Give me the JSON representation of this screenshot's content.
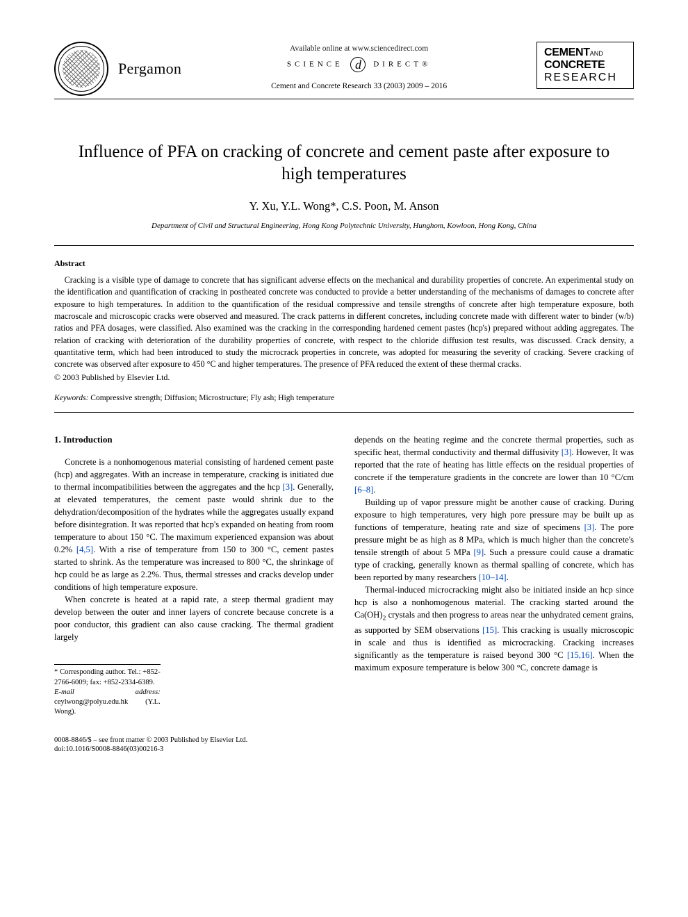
{
  "header": {
    "publisher": "Pergamon",
    "available_line": "Available online at www.sciencedirect.com",
    "scidirect_left": "SCIENCE",
    "scidirect_glyph": "d",
    "scidirect_right": "DIRECT®",
    "journal_citation": "Cement and Concrete Research 33 (2003) 2009 – 2016",
    "box": {
      "line1a": "CEMENT",
      "line1b": "AND",
      "line2": "CONCRETE",
      "line3": "RESEARCH"
    }
  },
  "article": {
    "title": "Influence of PFA on cracking of concrete and cement paste after exposure to high temperatures",
    "authors": "Y. Xu, Y.L. Wong*, C.S. Poon, M. Anson",
    "affiliation": "Department of Civil and Structural Engineering, Hong Kong Polytechnic University, Hunghom, Kowloon, Hong Kong, China"
  },
  "abstract": {
    "heading": "Abstract",
    "body": "Cracking is a visible type of damage to concrete that has significant adverse effects on the mechanical and durability properties of concrete. An experimental study on the identification and quantification of cracking in postheated concrete was conducted to provide a better understanding of the mechanisms of damages to concrete after exposure to high temperatures. In addition to the quantification of the residual compressive and tensile strengths of concrete after high temperature exposure, both macroscale and microscopic cracks were observed and measured. The crack patterns in different concretes, including concrete made with different water to binder (w/b) ratios and PFA dosages, were classified. Also examined was the cracking in the corresponding hardened cement pastes (hcp's) prepared without adding aggregates. The relation of cracking with deterioration of the durability properties of concrete, with respect to the chloride diffusion test results, was discussed. Crack density, a quantitative term, which had been introduced to study the microcrack properties in concrete, was adopted for measuring the severity of cracking. Severe cracking of concrete was observed after exposure to 450 °C and higher temperatures. The presence of PFA reduced the extent of these thermal cracks.",
    "copyright": "© 2003 Published by Elsevier Ltd."
  },
  "keywords": {
    "label": "Keywords:",
    "text": " Compressive strength; Diffusion; Microstructure; Fly ash; High temperature"
  },
  "intro": {
    "heading": "1. Introduction",
    "left_paras": [
      "Concrete is a nonhomogenous material consisting of hardened cement paste (hcp) and aggregates. With an increase in temperature, cracking is initiated due to thermal incompatibilities between the aggregates and the hcp [3]. Generally, at elevated temperatures, the cement paste would shrink due to the dehydration/decomposition of the hydrates while the aggregates usually expand before disintegration. It was reported that hcp's expanded on heating from room temperature to about 150 °C. The maximum experienced expansion was about 0.2% [4,5]. With a rise of temperature from 150 to 300 °C, cement pastes started to shrink. As the temperature was increased to 800 °C, the shrinkage of hcp could be as large as 2.2%. Thus, thermal stresses and cracks develop under conditions of high temperature exposure.",
      "When concrete is heated at a rapid rate, a steep thermal gradient may develop between the outer and inner layers of concrete because concrete is a poor conductor, this gradient can also cause cracking. The thermal gradient largely"
    ],
    "right_paras": [
      "depends on the heating regime and the concrete thermal properties, such as specific heat, thermal conductivity and thermal diffusivity [3]. However, It was reported that the rate of heating has little effects on the residual properties of concrete if the temperature gradients in the concrete are lower than 10 °C/cm [6–8].",
      "Building up of vapor pressure might be another cause of cracking. During exposure to high temperatures, very high pore pressure may be built up as functions of temperature, heating rate and size of specimens [3]. The pore pressure might be as high as 8 MPa, which is much higher than the concrete's tensile strength of about 5 MPa [9]. Such a pressure could cause a dramatic type of cracking, generally known as thermal spalling of concrete, which has been reported by many researchers [10–14].",
      "Thermal-induced microcracking might also be initiated inside an hcp since hcp is also a nonhomogenous material. The cracking started around the Ca(OH)₂ crystals and then progress to areas near the unhydrated cement grains, as supported by SEM observations [15]. This cracking is usually microscopic in scale and thus is identified as microcracking. Cracking increases significantly as the temperature is raised beyond 300 °C [15,16]. When the maximum exposure temperature is below 300 °C, concrete damage is"
    ]
  },
  "footnote": {
    "line1": "* Corresponding author. Tel.: +852-2766-6009; fax: +852-2334-6389.",
    "mail_label": "E-mail address:",
    "mail_value": " ceylwong@polyu.edu.hk (Y.L. Wong)."
  },
  "footer": {
    "line1": "0008-8846/$ – see front matter © 2003 Published by Elsevier Ltd.",
    "line2": "doi:10.1016/S0008-8846(03)00216-3"
  },
  "ref_links": {
    "r3": "[3]",
    "r45": "[4,5]",
    "r6_8": "[6–8]",
    "r9": "[9]",
    "r10_14": "[10–14]",
    "r15": "[15]",
    "r15_16": "[15,16]"
  },
  "colors": {
    "link": "#0047c2",
    "text": "#000000",
    "bg": "#ffffff"
  }
}
